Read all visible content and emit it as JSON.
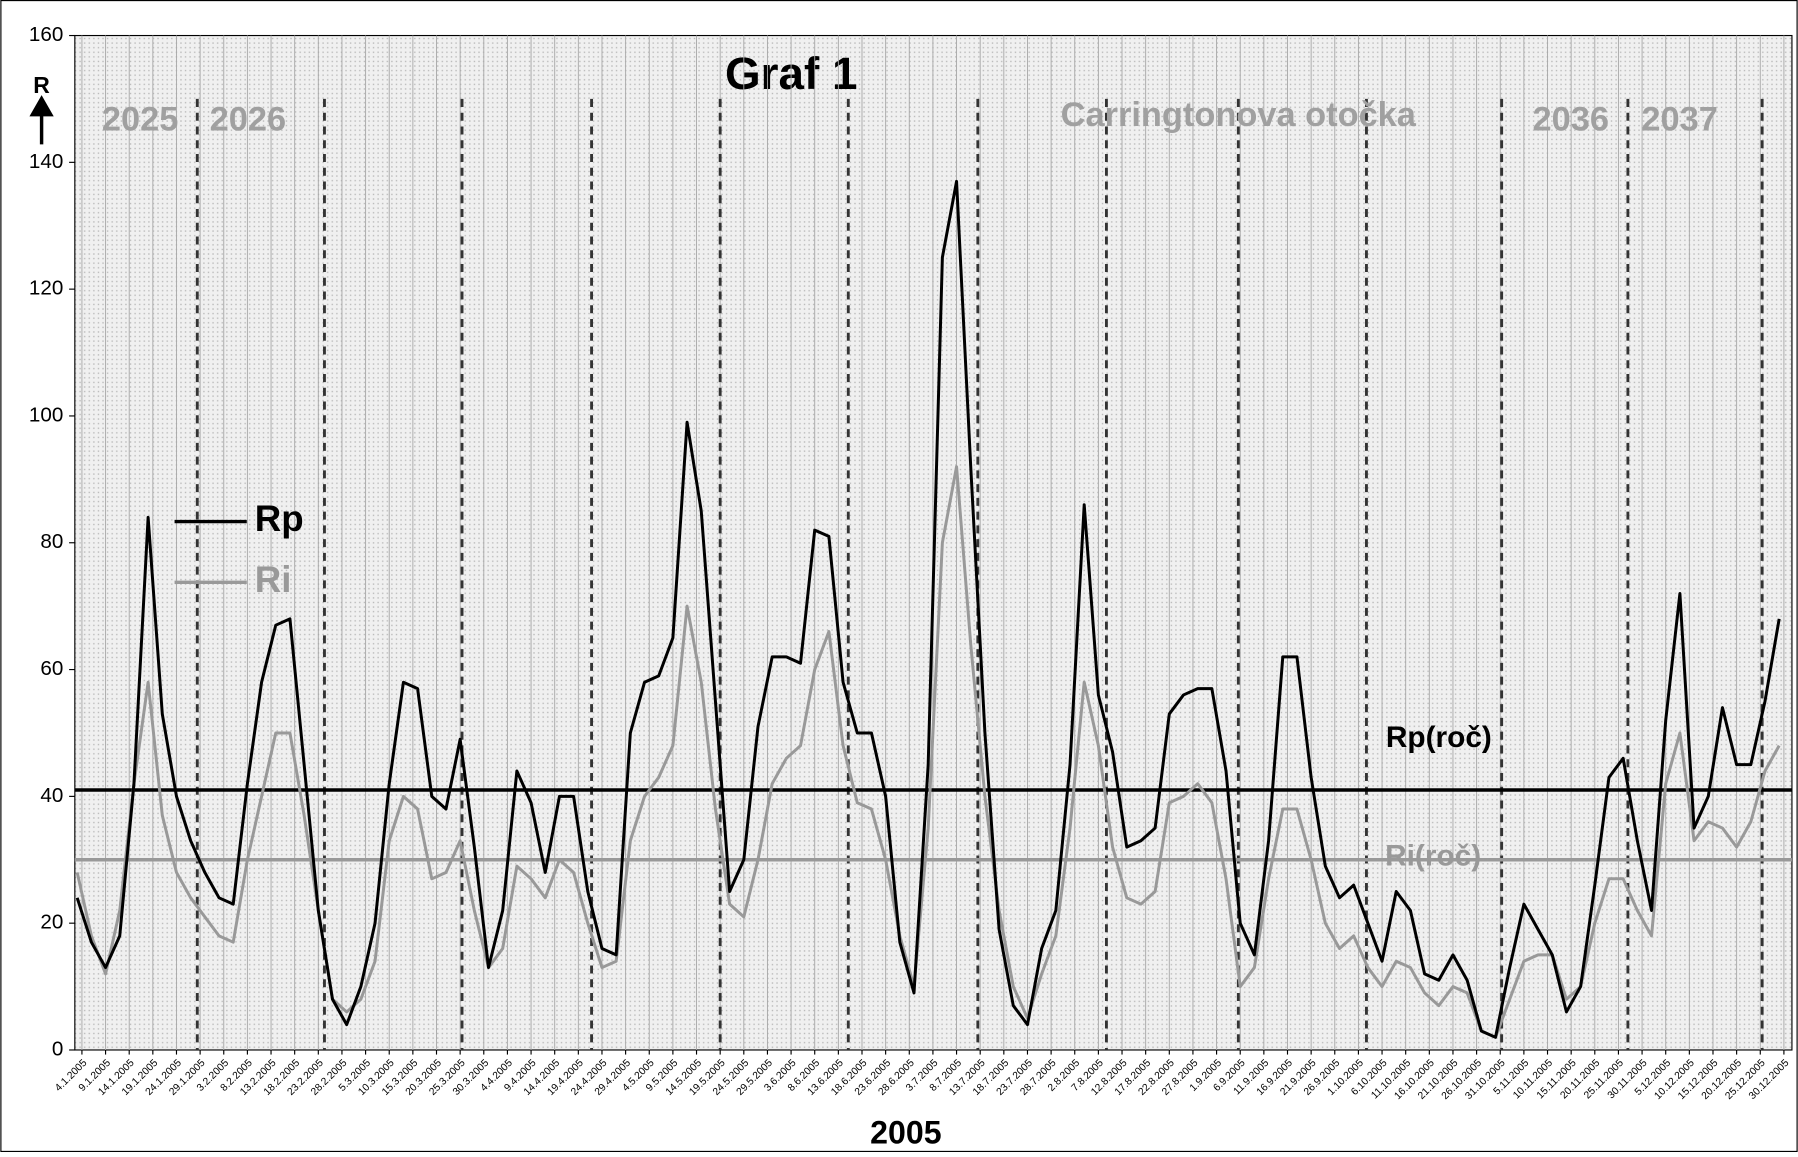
{
  "chart_data": {
    "type": "line",
    "title": "Graf 1",
    "xlabel": "2005",
    "ylabel": "R",
    "x": [
      3,
      6,
      9,
      12,
      15,
      18,
      21,
      24,
      27,
      30,
      33,
      36,
      39,
      42,
      45,
      48,
      51,
      54,
      57,
      60,
      63,
      66,
      69,
      72,
      75,
      78,
      81,
      84,
      87,
      90,
      93,
      96,
      99,
      102,
      105,
      108,
      111,
      114,
      117,
      120,
      123,
      126,
      129,
      132,
      135,
      138,
      141,
      144,
      147,
      150,
      153,
      156,
      159,
      162,
      165,
      168,
      171,
      174,
      177,
      180,
      183,
      186,
      189,
      192,
      195,
      198,
      201,
      204,
      207,
      210,
      213,
      216,
      219,
      222,
      225,
      228,
      231,
      234,
      237,
      240,
      243,
      246,
      249,
      252,
      255,
      258,
      261,
      264,
      267,
      270,
      273,
      276,
      279,
      282,
      285,
      288,
      291,
      294,
      297,
      300,
      303,
      306,
      309,
      312,
      315,
      318,
      321,
      324,
      327,
      330,
      333,
      336,
      339,
      342,
      345,
      348,
      351,
      354,
      357,
      360,
      363
    ],
    "series": [
      {
        "name": "Rp",
        "color": "#000000",
        "values": [
          24,
          17,
          13,
          18,
          42,
          84,
          53,
          40,
          33,
          28,
          24,
          23,
          42,
          58,
          67,
          68,
          45,
          22,
          8,
          4,
          10,
          20,
          42,
          58,
          57,
          40,
          38,
          49,
          32,
          13,
          22,
          44,
          39,
          28,
          40,
          40,
          25,
          16,
          15,
          50,
          58,
          59,
          65,
          99,
          85,
          55,
          25,
          30,
          51,
          62,
          62,
          61,
          82,
          81,
          58,
          50,
          50,
          40,
          17,
          9,
          45,
          125,
          137,
          92,
          50,
          19,
          7,
          4,
          16,
          22,
          45,
          86,
          56,
          47,
          32,
          33,
          35,
          53,
          56,
          57,
          57,
          44,
          20,
          15,
          33,
          62,
          62,
          43,
          29,
          24,
          26,
          20,
          14,
          25,
          22,
          12,
          11,
          15,
          11,
          3,
          2,
          13,
          23,
          19,
          15,
          6,
          10,
          26,
          43,
          46,
          33,
          22,
          52,
          72,
          35,
          40,
          54,
          45,
          45,
          55,
          68
        ]
      },
      {
        "name": "Ri",
        "color": "#999999",
        "values": [
          28,
          18,
          12,
          22,
          42,
          58,
          37,
          28,
          24,
          21,
          18,
          17,
          30,
          40,
          50,
          50,
          37,
          22,
          8,
          6,
          8,
          14,
          33,
          40,
          38,
          27,
          28,
          33,
          22,
          13,
          16,
          29,
          27,
          24,
          30,
          28,
          20,
          13,
          14,
          33,
          40,
          43,
          48,
          70,
          58,
          38,
          23,
          21,
          30,
          42,
          46,
          48,
          60,
          66,
          48,
          39,
          38,
          30,
          18,
          10,
          35,
          80,
          92,
          64,
          40,
          22,
          10,
          5,
          12,
          18,
          35,
          58,
          48,
          32,
          24,
          23,
          25,
          39,
          40,
          42,
          39,
          27,
          10,
          13,
          27,
          38,
          38,
          30,
          20,
          16,
          18,
          13,
          10,
          14,
          13,
          9,
          7,
          10,
          9,
          3,
          2,
          8,
          14,
          15,
          15,
          8,
          10,
          20,
          27,
          27,
          22,
          18,
          42,
          50,
          33,
          36,
          35,
          32,
          36,
          44,
          48
        ]
      }
    ],
    "xlim": [
      2.5,
      365.7
    ],
    "ylim": [
      0,
      160
    ],
    "yticks": [
      0,
      20,
      40,
      60,
      80,
      100,
      120,
      140,
      160
    ],
    "xticks": [
      {
        "value": 4,
        "label": "4.1.2005"
      },
      {
        "value": 9,
        "label": "9.1.2005"
      },
      {
        "value": 14,
        "label": "14.1.2005"
      },
      {
        "value": 19,
        "label": "19.1.2005"
      },
      {
        "value": 24,
        "label": "24.1.2005"
      },
      {
        "value": 29,
        "label": "29.1.2005"
      },
      {
        "value": 34,
        "label": "3.2.2005"
      },
      {
        "value": 39,
        "label": "8.2.2005"
      },
      {
        "value": 44,
        "label": "13.2.2005"
      },
      {
        "value": 49,
        "label": "18.2.2005"
      },
      {
        "value": 54,
        "label": "23.2.2005"
      },
      {
        "value": 59,
        "label": "28.2.2005"
      },
      {
        "value": 64,
        "label": "5.3.2005"
      },
      {
        "value": 69,
        "label": "10.3.2005"
      },
      {
        "value": 74,
        "label": "15.3.2005"
      },
      {
        "value": 79,
        "label": "20.3.2005"
      },
      {
        "value": 84,
        "label": "25.3.2005"
      },
      {
        "value": 89,
        "label": "30.3.2005"
      },
      {
        "value": 94,
        "label": "4.4.2005"
      },
      {
        "value": 99,
        "label": "9.4.2005"
      },
      {
        "value": 104,
        "label": "14.4.2005"
      },
      {
        "value": 109,
        "label": "19.4.2005"
      },
      {
        "value": 114,
        "label": "24.4.2005"
      },
      {
        "value": 119,
        "label": "29.4.2005"
      },
      {
        "value": 124,
        "label": "4.5.2005"
      },
      {
        "value": 129,
        "label": "9.5.2005"
      },
      {
        "value": 134,
        "label": "14.5.2005"
      },
      {
        "value": 139,
        "label": "19.5.2005"
      },
      {
        "value": 144,
        "label": "24.5.2005"
      },
      {
        "value": 149,
        "label": "29.5.2005"
      },
      {
        "value": 154,
        "label": "3.6.2005"
      },
      {
        "value": 159,
        "label": "8.6.2005"
      },
      {
        "value": 164,
        "label": "13.6.2005"
      },
      {
        "value": 169,
        "label": "18.6.2005"
      },
      {
        "value": 174,
        "label": "23.6.2005"
      },
      {
        "value": 179,
        "label": "28.6.2005"
      },
      {
        "value": 184,
        "label": "3.7.2005"
      },
      {
        "value": 189,
        "label": "8.7.2005"
      },
      {
        "value": 194,
        "label": "13.7.2005"
      },
      {
        "value": 199,
        "label": "18.7.2005"
      },
      {
        "value": 204,
        "label": "23.7.2005"
      },
      {
        "value": 209,
        "label": "28.7.2005"
      },
      {
        "value": 214,
        "label": "2.8.2005"
      },
      {
        "value": 219,
        "label": "7.8.2005"
      },
      {
        "value": 224,
        "label": "12.8.2005"
      },
      {
        "value": 229,
        "label": "17.8.2005"
      },
      {
        "value": 234,
        "label": "22.8.2005"
      },
      {
        "value": 239,
        "label": "27.8.2005"
      },
      {
        "value": 244,
        "label": "1.9.2005"
      },
      {
        "value": 249,
        "label": "6.9.2005"
      },
      {
        "value": 254,
        "label": "11.9.2005"
      },
      {
        "value": 259,
        "label": "16.9.2005"
      },
      {
        "value": 264,
        "label": "21.9.2005"
      },
      {
        "value": 269,
        "label": "26.9.2005"
      },
      {
        "value": 274,
        "label": "1.10.2005"
      },
      {
        "value": 279,
        "label": "6.10.2005"
      },
      {
        "value": 284,
        "label": "11.10.2005"
      },
      {
        "value": 289,
        "label": "16.10.2005"
      },
      {
        "value": 294,
        "label": "21.10.2005"
      },
      {
        "value": 299,
        "label": "26.10.2005"
      },
      {
        "value": 304,
        "label": "31.10.2005"
      },
      {
        "value": 309,
        "label": "5.11.2005"
      },
      {
        "value": 314,
        "label": "10.11.2005"
      },
      {
        "value": 319,
        "label": "15.11.2005"
      },
      {
        "value": 324,
        "label": "20.11.2005"
      },
      {
        "value": 329,
        "label": "25.11.2005"
      },
      {
        "value": 334,
        "label": "30.11.2005"
      },
      {
        "value": 339,
        "label": "5.12.2005"
      },
      {
        "value": 344,
        "label": "10.12.2005"
      },
      {
        "value": 349,
        "label": "15.12.2005"
      },
      {
        "value": 354,
        "label": "20.12.2005"
      },
      {
        "value": 359,
        "label": "25.12.2005"
      },
      {
        "value": 364,
        "label": "30.12.2005"
      }
    ],
    "grid": true,
    "legend": "center-left",
    "reference_lines": [
      {
        "label": "Rp(roč)",
        "value": 41,
        "color": "#000000"
      },
      {
        "label": "Ri(roč)",
        "value": 30,
        "color": "#999999"
      }
    ],
    "rotation_boundaries": [
      28.4,
      55.3,
      84.4,
      111.8,
      139,
      166.1,
      193.5,
      220.7,
      248.6,
      275.7,
      304.3,
      331,
      359.4
    ],
    "rotation_labels": [
      "2025",
      "2026",
      "Carringtonova otočka",
      "2036",
      "2037"
    ]
  }
}
